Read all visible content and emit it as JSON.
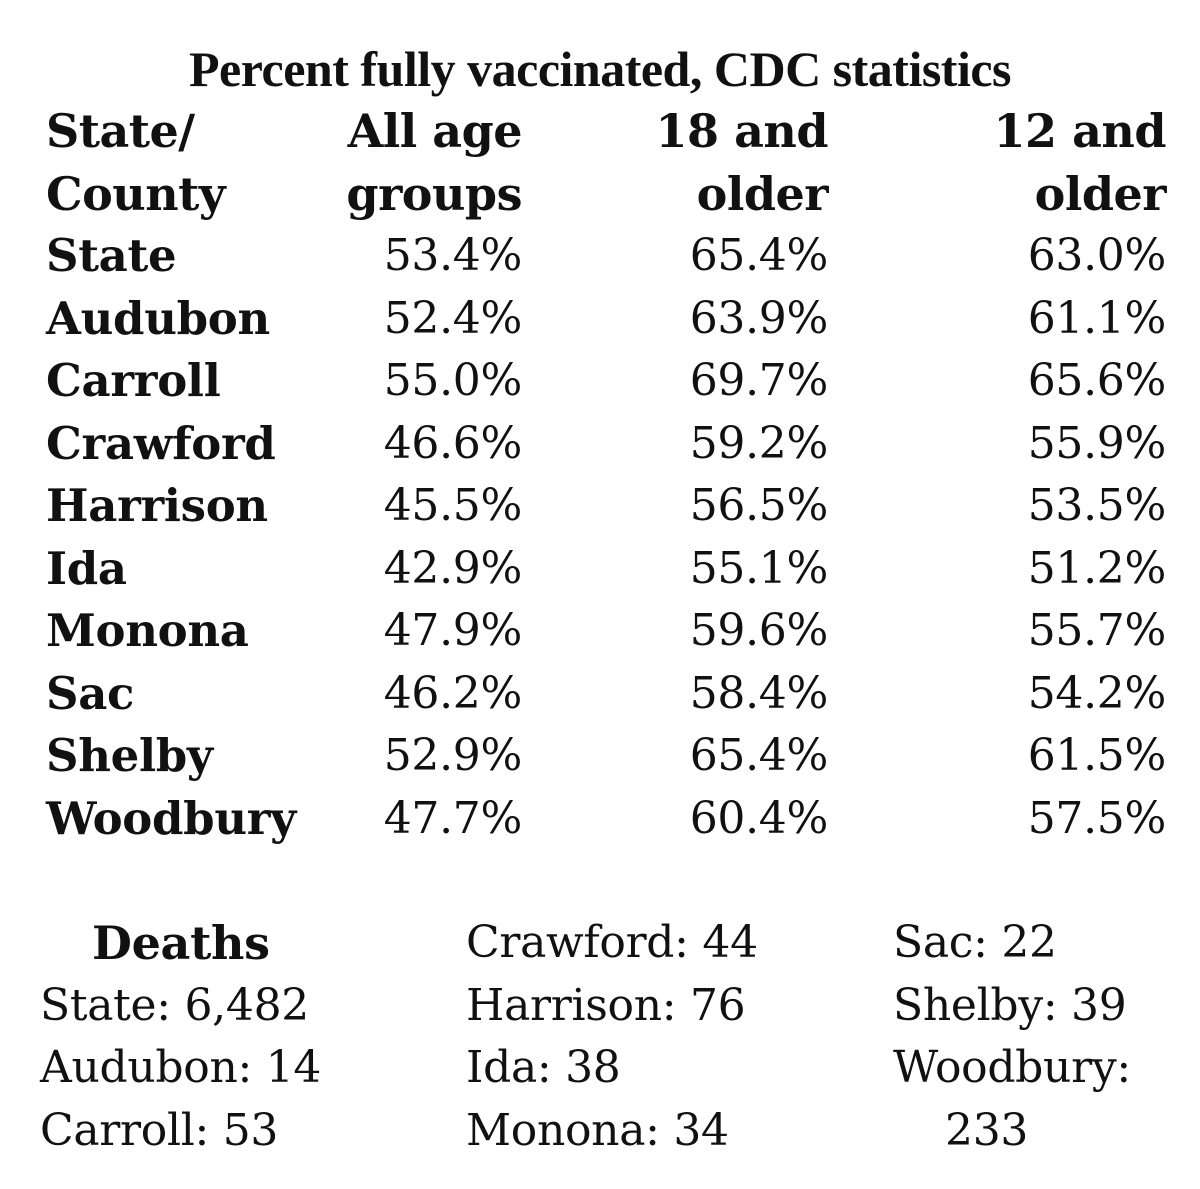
{
  "title": "Percent fully vaccinated, CDC statistics",
  "table": {
    "headers": [
      [
        "State/",
        "County"
      ],
      [
        "All age",
        "groups"
      ],
      [
        "18 and",
        "older"
      ],
      [
        "12 and",
        "older"
      ]
    ],
    "rows": [
      [
        "State",
        "53.4%",
        "65.4%",
        "63.0%"
      ],
      [
        "Audubon",
        "52.4%",
        "63.9%",
        "61.1%"
      ],
      [
        "Carroll",
        "55.0%",
        "69.7%",
        "65.6%"
      ],
      [
        "Crawford",
        "46.6%",
        "59.2%",
        "55.9%"
      ],
      [
        "Harrison",
        "45.5%",
        "56.5%",
        "53.5%"
      ],
      [
        "Ida",
        "42.9%",
        "55.1%",
        "51.2%"
      ],
      [
        "Monona",
        "47.9%",
        "59.6%",
        "55.7%"
      ],
      [
        "Sac",
        "46.2%",
        "58.4%",
        "54.2%"
      ],
      [
        "Shelby",
        "52.9%",
        "65.4%",
        "61.5%"
      ],
      [
        "Woodbury",
        "47.7%",
        "60.4%",
        "57.5%"
      ]
    ]
  },
  "deaths": {
    "heading": "Deaths",
    "col1": [
      "State: 6,482",
      "Audubon: 14",
      "Carroll: 53"
    ],
    "col2": [
      "Crawford: 44",
      "Harrison: 76",
      "Ida: 38",
      "Monona: 34"
    ],
    "col3": [
      "Sac: 22",
      "Shelby: 39",
      "Woodbury:",
      "233"
    ]
  }
}
